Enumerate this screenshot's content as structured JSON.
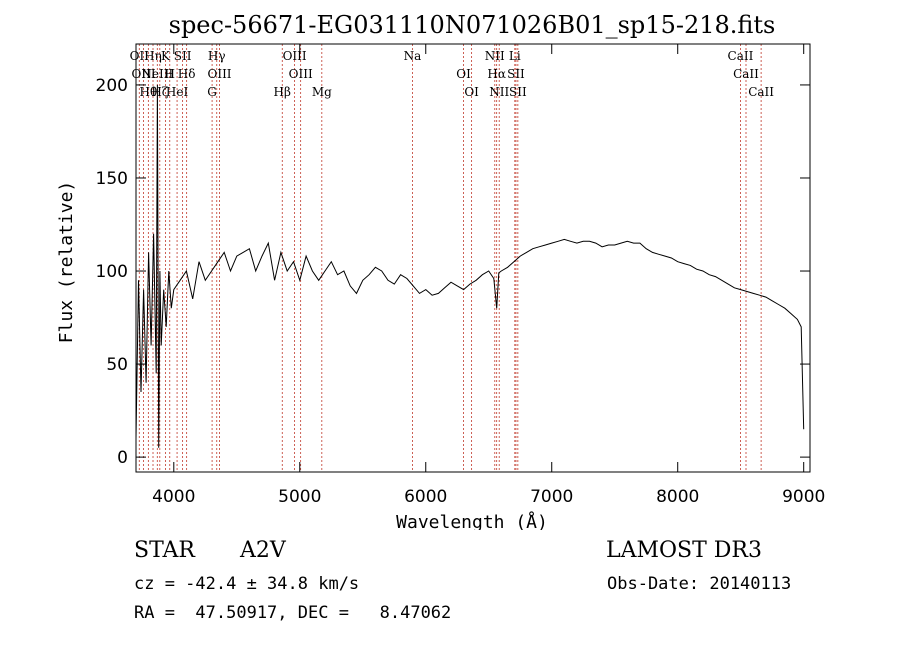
{
  "chart_data": {
    "type": "line",
    "title": "spec-56671-EG031110N071026B01_sp15-218.fits",
    "xlabel": "Wavelength (Å)",
    "ylabel": "Flux (relative)",
    "xlim": [
      3700,
      9050
    ],
    "ylim": [
      -8,
      222
    ],
    "xticks": [
      4000,
      5000,
      6000,
      7000,
      8000,
      9000
    ],
    "yticks": [
      0,
      50,
      100,
      150,
      200
    ],
    "grid": false,
    "series": [
      {
        "name": "spectrum",
        "x": [
          3700,
          3720,
          3740,
          3760,
          3780,
          3800,
          3820,
          3840,
          3860,
          3870,
          3880,
          3890,
          3900,
          3920,
          3940,
          3960,
          3980,
          4000,
          4050,
          4100,
          4150,
          4200,
          4250,
          4300,
          4350,
          4400,
          4450,
          4500,
          4550,
          4600,
          4650,
          4700,
          4750,
          4800,
          4850,
          4900,
          4950,
          5000,
          5050,
          5100,
          5150,
          5200,
          5250,
          5300,
          5350,
          5400,
          5450,
          5500,
          5550,
          5600,
          5650,
          5700,
          5750,
          5800,
          5850,
          5900,
          5950,
          6000,
          6050,
          6100,
          6150,
          6200,
          6250,
          6300,
          6350,
          6400,
          6450,
          6500,
          6540,
          6563,
          6580,
          6600,
          6650,
          6700,
          6750,
          6800,
          6850,
          6900,
          6950,
          7000,
          7050,
          7100,
          7150,
          7200,
          7250,
          7300,
          7350,
          7400,
          7450,
          7500,
          7550,
          7600,
          7650,
          7700,
          7750,
          7800,
          7850,
          7900,
          7950,
          8000,
          8050,
          8100,
          8150,
          8200,
          8250,
          8300,
          8350,
          8400,
          8450,
          8500,
          8550,
          8600,
          8650,
          8700,
          8750,
          8800,
          8850,
          8900,
          8950,
          8980,
          9000
        ],
        "y": [
          10,
          95,
          35,
          90,
          40,
          110,
          60,
          120,
          45,
          200,
          5,
          100,
          60,
          90,
          70,
          100,
          80,
          90,
          95,
          100,
          85,
          105,
          95,
          100,
          105,
          110,
          100,
          108,
          110,
          112,
          100,
          108,
          115,
          95,
          110,
          100,
          105,
          95,
          108,
          100,
          95,
          100,
          105,
          98,
          100,
          92,
          88,
          95,
          98,
          102,
          100,
          95,
          93,
          98,
          96,
          92,
          88,
          90,
          87,
          88,
          91,
          94,
          92,
          90,
          93,
          95,
          98,
          100,
          96,
          80,
          99,
          100,
          102,
          105,
          108,
          110,
          112,
          113,
          114,
          115,
          116,
          117,
          116,
          115,
          116,
          116,
          115,
          113,
          114,
          114,
          115,
          116,
          115,
          115,
          112,
          110,
          109,
          108,
          107,
          105,
          104,
          103,
          101,
          100,
          98,
          97,
          95,
          93,
          91,
          90,
          89,
          88,
          87,
          86,
          84,
          82,
          80,
          77,
          74,
          70,
          15
        ]
      }
    ],
    "lines": [
      {
        "x": 3726,
        "label": "OII"
      },
      {
        "x": 3760,
        "label": "OIII"
      },
      {
        "x": 3798,
        "label": "Hθ"
      },
      {
        "x": 3835,
        "label": "Hη"
      },
      {
        "x": 3869,
        "label": "NeIII"
      },
      {
        "x": 3889,
        "label": "Hζ"
      },
      {
        "x": 3934,
        "label": "K"
      },
      {
        "x": 3968,
        "label": "H"
      },
      {
        "x": 4026,
        "label": "HeI"
      },
      {
        "x": 4070,
        "label": "SII"
      },
      {
        "x": 4102,
        "label": "Hδ"
      },
      {
        "x": 4304,
        "label": "G"
      },
      {
        "x": 4341,
        "label": "Hγ"
      },
      {
        "x": 4363,
        "label": "OIII"
      },
      {
        "x": 4861,
        "label": "Hβ"
      },
      {
        "x": 4959,
        "label": "OIII"
      },
      {
        "x": 5007,
        "label": "OIII"
      },
      {
        "x": 5175,
        "label": "Mg"
      },
      {
        "x": 5894,
        "label": "Na"
      },
      {
        "x": 6300,
        "label": "OI"
      },
      {
        "x": 6364,
        "label": "OI"
      },
      {
        "x": 6548,
        "label": "NII"
      },
      {
        "x": 6563,
        "label": "Hα"
      },
      {
        "x": 6583,
        "label": "NII"
      },
      {
        "x": 6707,
        "label": "Li"
      },
      {
        "x": 6716,
        "label": "SII"
      },
      {
        "x": 6731,
        "label": "SII"
      },
      {
        "x": 8498,
        "label": "CaII"
      },
      {
        "x": 8542,
        "label": "CaII"
      },
      {
        "x": 8662,
        "label": "CaII"
      }
    ]
  },
  "footer": {
    "obj_class": "STAR",
    "obj_subclass": "A2V",
    "survey": "LAMOST DR3",
    "redshift_text": "cz = -42.4 ± 34.8 km/s",
    "obs_date_text": "Obs-Date: 20140113",
    "coords_text": "RA =  47.50917, DEC =   8.47062"
  }
}
